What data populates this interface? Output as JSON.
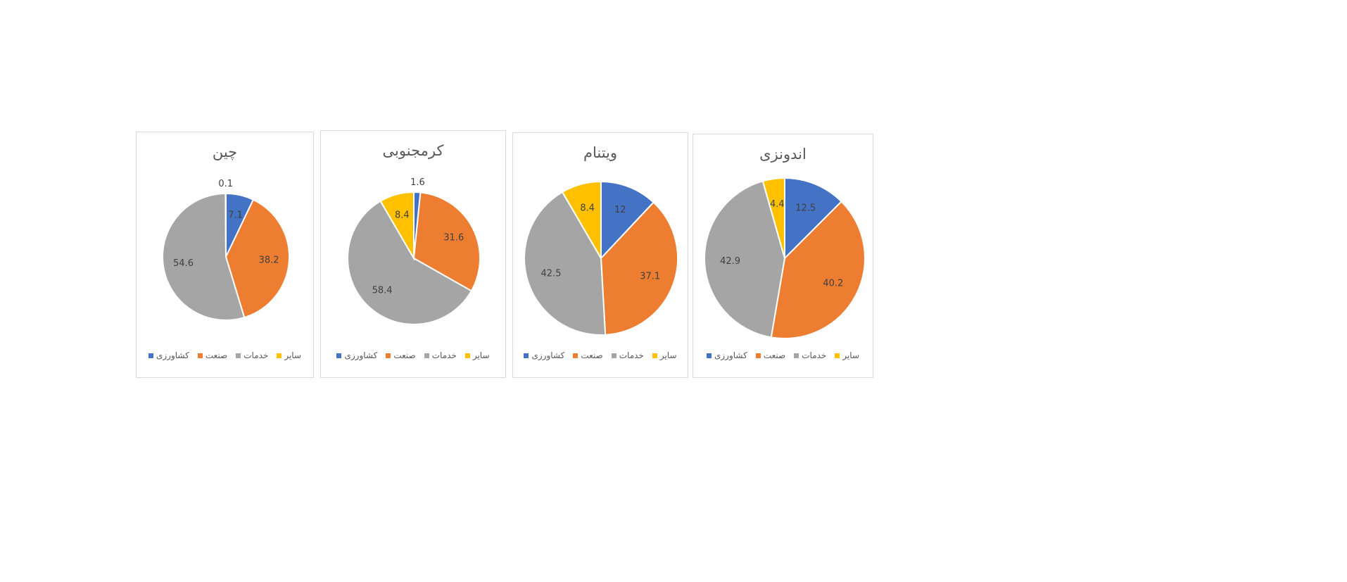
{
  "colors": {
    "کشاورزی": "#4472c4",
    "صنعت": "#ed7d31",
    "خدمات": "#a5a5a5",
    "سایر": "#ffc000"
  },
  "chart_data": [
    {
      "type": "pie",
      "title": "چین",
      "categories": [
        "کشاورزی",
        "صنعت",
        "خدمات",
        "سایر"
      ],
      "values": [
        7.1,
        38.2,
        54.6,
        0.1
      ],
      "legend": [
        "سایر",
        "خدمات",
        "صنعت",
        "کشاورزی"
      ],
      "legend_position": "bottom"
    },
    {
      "type": "pie",
      "title": "کرمجنوبی",
      "categories": [
        "کشاورزی",
        "صنعت",
        "خدمات",
        "سایر"
      ],
      "values": [
        1.6,
        31.6,
        58.4,
        8.4
      ],
      "legend": [
        "سایر",
        "خدمات",
        "صنعت",
        "کشاورزی"
      ],
      "legend_position": "bottom"
    },
    {
      "type": "pie",
      "title": "ویتنام",
      "categories": [
        "کشاورزی",
        "صنعت",
        "خدمات",
        "سایر"
      ],
      "values": [
        12,
        37.1,
        42.5,
        8.4
      ],
      "legend": [
        "سایر",
        "خدمات",
        "صنعت",
        "کشاورزی"
      ],
      "legend_position": "bottom"
    },
    {
      "type": "pie",
      "title": "اندونزی",
      "categories": [
        "کشاورزی",
        "صنعت",
        "خدمات",
        "سایر"
      ],
      "values": [
        12.5,
        40.2,
        42.9,
        4.4
      ],
      "legend": [
        "سایر",
        "خدمات",
        "صنعت",
        "کشاورزی"
      ],
      "legend_position": "bottom"
    }
  ]
}
